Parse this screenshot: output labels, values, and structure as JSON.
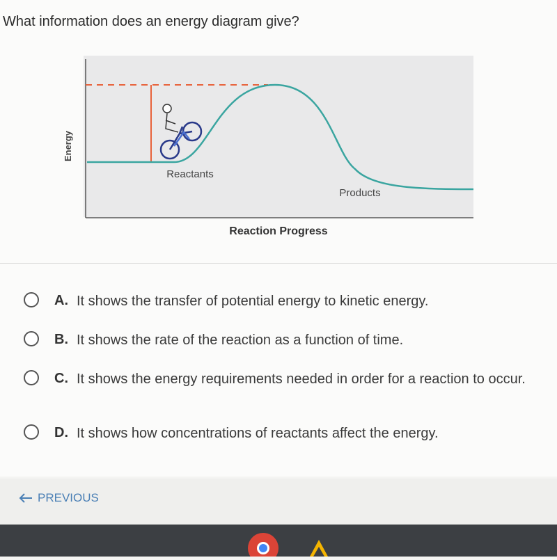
{
  "question": "What information does an energy diagram give?",
  "diagram": {
    "y_label": "Energy",
    "x_label": "Reaction Progress",
    "reactants_label": "Reactants",
    "products_label": "Products"
  },
  "options": [
    {
      "letter": "A.",
      "text": "It shows the transfer of potential energy to kinetic energy."
    },
    {
      "letter": "B.",
      "text": "It shows the rate of the reaction as a function of time."
    },
    {
      "letter": "C.",
      "text": "It shows the energy requirements needed in order for a reaction to occur."
    },
    {
      "letter": "D.",
      "text": "It shows how concentrations of reactants affect the energy."
    }
  ],
  "nav": {
    "previous": "PREVIOUS"
  }
}
